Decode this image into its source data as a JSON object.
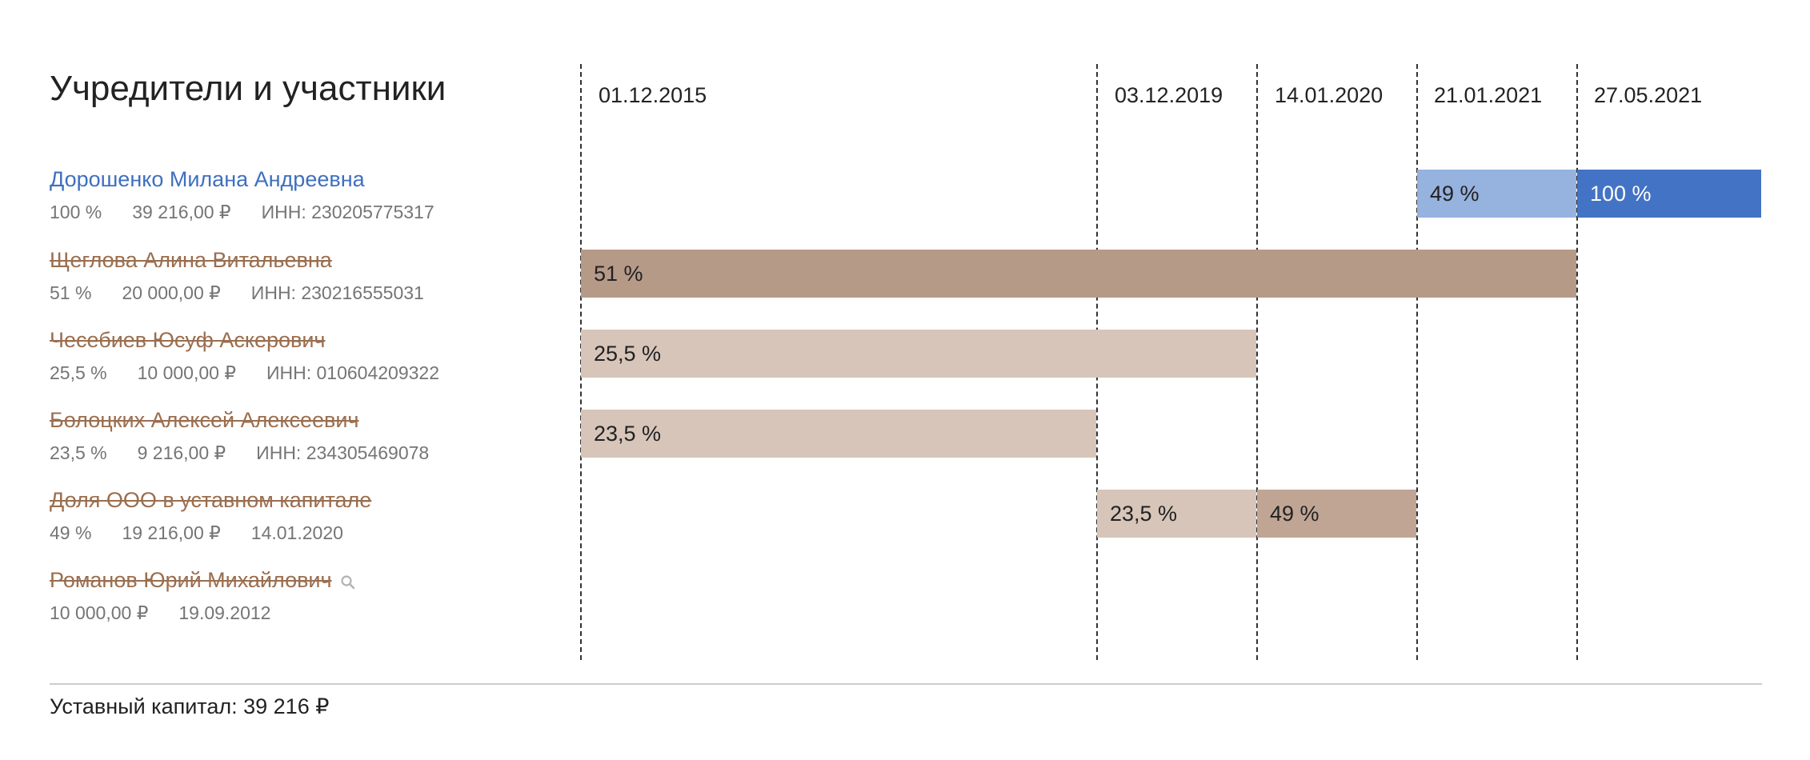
{
  "title": "Учредители и участники",
  "dates": [
    "01.12.2015",
    "03.12.2019",
    "14.01.2020",
    "21.01.2021",
    "27.05.2021"
  ],
  "participants": [
    {
      "name": "Дорошенко Милана Андреевна",
      "status": "active",
      "share": "100 %",
      "amount": "39 216,00 ₽",
      "extra": "ИНН: 230205775317"
    },
    {
      "name": "Щеглова Алина Витальевна",
      "status": "former",
      "share": "51 %",
      "amount": "20 000,00 ₽",
      "extra": "ИНН: 230216555031"
    },
    {
      "name": "Чесебиев Юсуф Аскерович",
      "status": "former",
      "share": "25,5 %",
      "amount": "10 000,00 ₽",
      "extra": "ИНН: 010604209322"
    },
    {
      "name": "Болоцких Алексей Алексеевич",
      "status": "former",
      "share": "23,5 %",
      "amount": "9 216,00 ₽",
      "extra": "ИНН: 234305469078"
    },
    {
      "name": "Доля ООО в уставном капитале",
      "status": "former",
      "share": "49 %",
      "amount": "19 216,00 ₽",
      "extra": "14.01.2020"
    },
    {
      "name": "Романов Юрий Михайлович",
      "status": "former",
      "amount": "10 000,00 ₽",
      "extra": "19.09.2012",
      "icon": "search-icon"
    }
  ],
  "bars": [
    {
      "row": 0,
      "from": 3,
      "to": 4,
      "label": "49 %",
      "color": "#96b2de"
    },
    {
      "row": 0,
      "from": 4,
      "to": "end",
      "label": "100 %",
      "color": "#4373c4"
    },
    {
      "row": 1,
      "from": 0,
      "to": 4,
      "label": "51 %",
      "color": "#b69a88"
    },
    {
      "row": 2,
      "from": 0,
      "to": 2,
      "label": "25,5 %",
      "color": "#d7c5ba"
    },
    {
      "row": 3,
      "from": 0,
      "to": 1,
      "label": "23,5 %",
      "color": "#d7c5ba"
    },
    {
      "row": 4,
      "from": 1,
      "to": 2,
      "label": "23,5 %",
      "color": "#d7c5ba"
    },
    {
      "row": 4,
      "from": 2,
      "to": 3,
      "label": "49 %",
      "color": "#c0a595"
    }
  ],
  "capital": "Уставный капитал: 39 216 ₽",
  "colors": {
    "active_name": "#3f6fbf",
    "former_name": "#9a6e4f",
    "meta_text": "#757575"
  }
}
